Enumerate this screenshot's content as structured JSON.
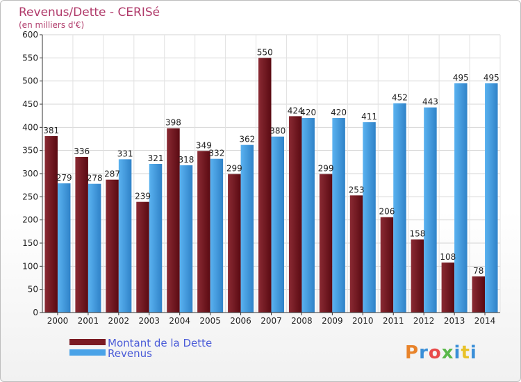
{
  "chart_data": {
    "type": "bar",
    "title": "Revenus/Dette - CERISé",
    "subtitle": "(en milliers d'€)",
    "categories": [
      "2000",
      "2001",
      "2002",
      "2003",
      "2004",
      "2005",
      "2006",
      "2007",
      "2008",
      "2009",
      "2010",
      "2011",
      "2012",
      "2013",
      "2014"
    ],
    "series": [
      {
        "name": "Montant de la Dette",
        "color": "#7a1a22",
        "values": [
          381,
          336,
          287,
          239,
          398,
          349,
          299,
          550,
          424,
          299,
          253,
          206,
          158,
          108,
          78
        ]
      },
      {
        "name": "Revenus",
        "color": "#4aa3e8",
        "values": [
          279,
          278,
          331,
          321,
          318,
          332,
          362,
          380,
          420,
          420,
          411,
          452,
          443,
          495,
          495
        ]
      }
    ],
    "ylim": [
      0,
      600
    ],
    "yticks": [
      0,
      50,
      100,
      150,
      200,
      250,
      300,
      350,
      400,
      450,
      500,
      550,
      600
    ],
    "grid": true,
    "legend_position": "bottom-left"
  },
  "logo": {
    "text": "Proxiti",
    "colors": [
      "#e8832a",
      "#3a8fd8",
      "#e84a4a",
      "#5ab84a",
      "#3a8fd8",
      "#e8c22a",
      "#3a8fd8"
    ]
  }
}
